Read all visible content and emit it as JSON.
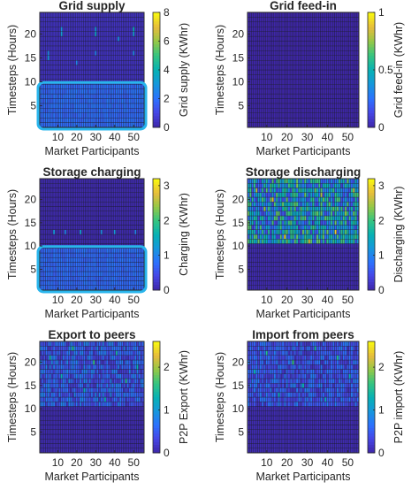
{
  "colors": {
    "accent_box": "#29b5ec",
    "grid_line": "#1a1a1a",
    "axis": "#262626"
  },
  "chart_data": [
    {
      "type": "heatmap",
      "title": "Grid supply",
      "xlabel": "Market Participants",
      "ylabel": "Timesteps (Hours)",
      "clabel": "Grid supply (KWhr)",
      "x_range": [
        1,
        55
      ],
      "y_range": [
        1,
        24
      ],
      "xticks": [
        10,
        20,
        30,
        40,
        50
      ],
      "yticks": [
        5,
        10,
        15,
        20
      ],
      "clim": [
        0,
        8
      ],
      "cticks": [
        "0",
        "2",
        "4",
        "6",
        "8"
      ],
      "pattern": {
        "base": 0.4,
        "low_band": [
          1,
          9,
          1.9
        ],
        "high_hours": [],
        "spikes": [
          [
            5,
            15,
            3.0
          ],
          [
            5,
            16,
            2.6
          ],
          [
            12,
            20,
            3.2
          ],
          [
            12,
            21,
            2.8
          ],
          [
            20,
            14,
            2.5
          ],
          [
            30,
            20,
            3.5
          ],
          [
            30,
            21,
            3.0
          ],
          [
            30,
            16,
            2.4
          ],
          [
            42,
            19,
            2.8
          ],
          [
            50,
            21,
            3.8
          ],
          [
            50,
            20,
            3.2
          ],
          [
            50,
            16,
            2.6
          ]
        ]
      },
      "highlight": {
        "x": [
          1,
          55
        ],
        "y": [
          1,
          9
        ]
      }
    },
    {
      "type": "heatmap",
      "title": "Grid feed-in",
      "xlabel": "Market Participants",
      "ylabel": "Timesteps (Hours)",
      "clabel": "Grid feed-in (KWhr)",
      "x_range": [
        1,
        55
      ],
      "y_range": [
        1,
        24
      ],
      "xticks": [
        10,
        20,
        30,
        40,
        50
      ],
      "yticks": [
        5,
        10,
        15,
        20
      ],
      "clim": [
        0,
        1
      ],
      "cticks": [
        "0",
        "0.5",
        "1"
      ],
      "pattern": {
        "base": 0.0,
        "low_band": [],
        "high_hours": [],
        "spikes": []
      }
    },
    {
      "type": "heatmap",
      "title": "Storage charging",
      "xlabel": "Market Participants",
      "ylabel": "Timesteps (Hours)",
      "clabel": "Charging (KWhr)",
      "x_range": [
        1,
        55
      ],
      "y_range": [
        1,
        24
      ],
      "xticks": [
        10,
        20,
        30,
        40,
        50
      ],
      "yticks": [
        5,
        10,
        15,
        20
      ],
      "clim": [
        0,
        3.2
      ],
      "cticks": [
        "0",
        "1",
        "2",
        "3"
      ],
      "pattern": {
        "base": 0.05,
        "low_band": [
          1,
          9,
          0.75
        ],
        "high_hours": [],
        "spikes": [
          [
            8,
            13,
            1.2
          ],
          [
            14,
            13,
            1.0
          ],
          [
            22,
            13,
            1.3
          ],
          [
            33,
            13,
            1.1
          ],
          [
            40,
            13,
            1.2
          ],
          [
            51,
            13,
            1.0
          ]
        ]
      },
      "highlight": {
        "x": [
          1,
          55
        ],
        "y": [
          1,
          9
        ]
      }
    },
    {
      "type": "heatmap",
      "title": "Storage discharging",
      "xlabel": "Market Participants",
      "ylabel": "Timesteps (Hours)",
      "clabel": "Discharging (KWhr)",
      "x_range": [
        1,
        55
      ],
      "y_range": [
        1,
        24
      ],
      "xticks": [
        10,
        20,
        30,
        40,
        50
      ],
      "yticks": [
        5,
        10,
        15,
        20
      ],
      "clim": [
        0,
        3.2
      ],
      "cticks": [
        "0",
        "1",
        "2",
        "3"
      ],
      "pattern": {
        "base": 0.05,
        "low_band": [],
        "high_hours": [
          11,
          24,
          1.6
        ],
        "spikes": [
          [
            5,
            22,
            2.6
          ],
          [
            9,
            18,
            2.4
          ],
          [
            13,
            20,
            2.8
          ],
          [
            19,
            12,
            3.0
          ],
          [
            25,
            23,
            2.3
          ],
          [
            31,
            11,
            2.7
          ],
          [
            37,
            21,
            2.5
          ],
          [
            44,
            13,
            2.9
          ],
          [
            49,
            17,
            2.4
          ],
          [
            53,
            22,
            2.6
          ]
        ]
      }
    },
    {
      "type": "heatmap",
      "title": "Export to peers",
      "xlabel": "Market Participants",
      "ylabel": "Timesteps (Hours)",
      "clabel": "P2P Export (KWhr)",
      "x_range": [
        1,
        55
      ],
      "y_range": [
        1,
        24
      ],
      "xticks": [
        10,
        20,
        30,
        40,
        50
      ],
      "yticks": [
        5,
        10,
        15,
        20
      ],
      "clim": [
        0,
        2.6
      ],
      "cticks": [
        "0",
        "1",
        "2"
      ],
      "pattern": {
        "base": 0.05,
        "low_band": [],
        "high_hours": [
          11,
          24,
          0.6
        ],
        "spikes": [
          [
            6,
            21,
            1.4
          ],
          [
            12,
            17,
            1.3
          ],
          [
            18,
            23,
            1.5
          ],
          [
            24,
            14,
            1.2
          ],
          [
            29,
            20,
            1.6
          ],
          [
            35,
            12,
            1.3
          ],
          [
            41,
            22,
            1.4
          ],
          [
            46,
            16,
            1.5
          ],
          [
            52,
            19,
            1.3
          ]
        ]
      }
    },
    {
      "type": "heatmap",
      "title": "Import from peers",
      "xlabel": "Market Participants",
      "ylabel": "Timesteps (Hours)",
      "clabel": "P2P import (KWhr)",
      "x_range": [
        1,
        55
      ],
      "y_range": [
        1,
        24
      ],
      "xticks": [
        10,
        20,
        30,
        40,
        50
      ],
      "yticks": [
        5,
        10,
        15,
        20
      ],
      "clim": [
        0,
        2.6
      ],
      "cticks": [
        "0",
        "1",
        "2"
      ],
      "pattern": {
        "base": 0.05,
        "low_band": [],
        "high_hours": [
          11,
          24,
          0.55
        ],
        "spikes": [
          [
            4,
            18,
            1.3
          ],
          [
            10,
            22,
            1.5
          ],
          [
            16,
            13,
            1.2
          ],
          [
            23,
            20,
            1.6
          ],
          [
            28,
            15,
            1.3
          ],
          [
            34,
            23,
            1.4
          ],
          [
            39,
            12,
            1.2
          ],
          [
            45,
            21,
            1.5
          ],
          [
            51,
            17,
            1.3
          ]
        ]
      }
    }
  ]
}
